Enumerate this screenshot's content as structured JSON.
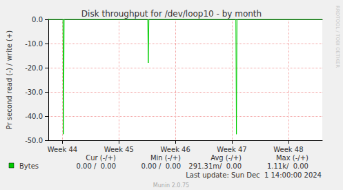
{
  "chart_data": {
    "type": "line",
    "title": "Disk throughput for /dev/loop10 - by month",
    "y_label": "Pr second read (-) / write (+)",
    "x": [
      43.75,
      44.01,
      44.02,
      44.03,
      45.51,
      45.52,
      45.53,
      47.07,
      47.08,
      47.09,
      48.6
    ],
    "series": [
      {
        "name": "Bytes",
        "color": "#00cc00",
        "values": [
          0,
          0,
          -47.5,
          0,
          0,
          -18,
          0,
          0,
          -47.5,
          0,
          0
        ],
        "stats": [
          "0.00 /  0.00",
          "0.00 /  0.00",
          "291.31m/  0.00",
          "1.11k/  0.00"
        ]
      }
    ],
    "stats_headers": [
      "Cur (-/+)",
      "Min (-/+)",
      "Avg (-/+)",
      "Max (-/+)"
    ],
    "xlim": [
      43.75,
      48.6
    ],
    "xticks": [
      {
        "value": 44,
        "label": "Week 44"
      },
      {
        "value": 45,
        "label": "Week 45"
      },
      {
        "value": 46,
        "label": "Week 46"
      },
      {
        "value": 47,
        "label": "Week 47"
      },
      {
        "value": 48,
        "label": "Week 48"
      }
    ],
    "ylim": [
      -50,
      0
    ],
    "yticks": [
      {
        "value": -50,
        "label": "-50.0"
      },
      {
        "value": -40,
        "label": "-40.0"
      },
      {
        "value": -30,
        "label": "-30.0"
      },
      {
        "value": -20,
        "label": "-20.0"
      },
      {
        "value": -10,
        "label": "-10.0"
      },
      {
        "value": 0,
        "label": "0.0"
      }
    ],
    "grid": true,
    "footer": "Last update: Sun Dec  1 14:00:00 2024",
    "credit": "Munin 2.0.75",
    "watermark": "RRDTOOL / TOBI OETIKER"
  }
}
